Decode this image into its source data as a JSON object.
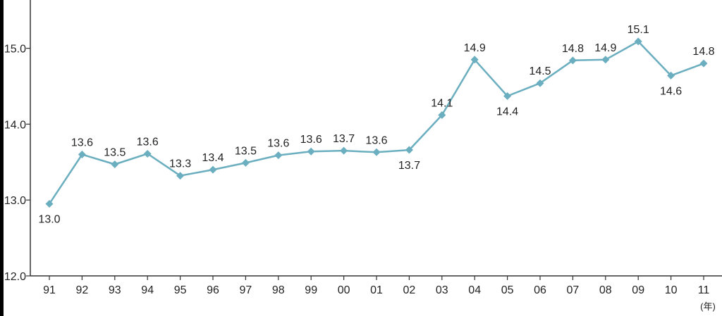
{
  "chart_data": {
    "type": "line",
    "categories": [
      "91",
      "92",
      "93",
      "94",
      "95",
      "96",
      "97",
      "98",
      "99",
      "00",
      "01",
      "02",
      "03",
      "04",
      "05",
      "06",
      "07",
      "08",
      "09",
      "10",
      "11"
    ],
    "values": [
      12.95,
      13.6,
      13.47,
      13.61,
      13.32,
      13.4,
      13.49,
      13.59,
      13.64,
      13.65,
      13.63,
      13.66,
      14.12,
      14.85,
      14.37,
      14.54,
      14.84,
      14.85,
      15.09,
      14.64,
      14.8
    ],
    "data_labels": [
      "13.0",
      "13.6",
      "13.5",
      "13.6",
      "13.3",
      "13.4",
      "13.5",
      "13.6",
      "13.6",
      "13.7",
      "13.6",
      "13.7",
      "14.1",
      "14.9",
      "14.4",
      "14.5",
      "14.8",
      "14.9",
      "15.1",
      "14.6",
      "14.8"
    ],
    "label_positions": [
      "below",
      "above",
      "above",
      "above",
      "above",
      "above",
      "above",
      "above",
      "above",
      "above",
      "above",
      "below",
      "above",
      "above",
      "below",
      "above",
      "above",
      "above",
      "above",
      "below",
      "above"
    ],
    "y_ticks": [
      "12.0",
      "13.0",
      "14.0",
      "15.0"
    ],
    "ylim": [
      12.0,
      15.65
    ],
    "x_unit": "(年)",
    "title": "",
    "xlabel": "",
    "ylabel": "",
    "grid": false,
    "legend": "none",
    "line_color": "#6aaebf",
    "marker": "diamond"
  }
}
